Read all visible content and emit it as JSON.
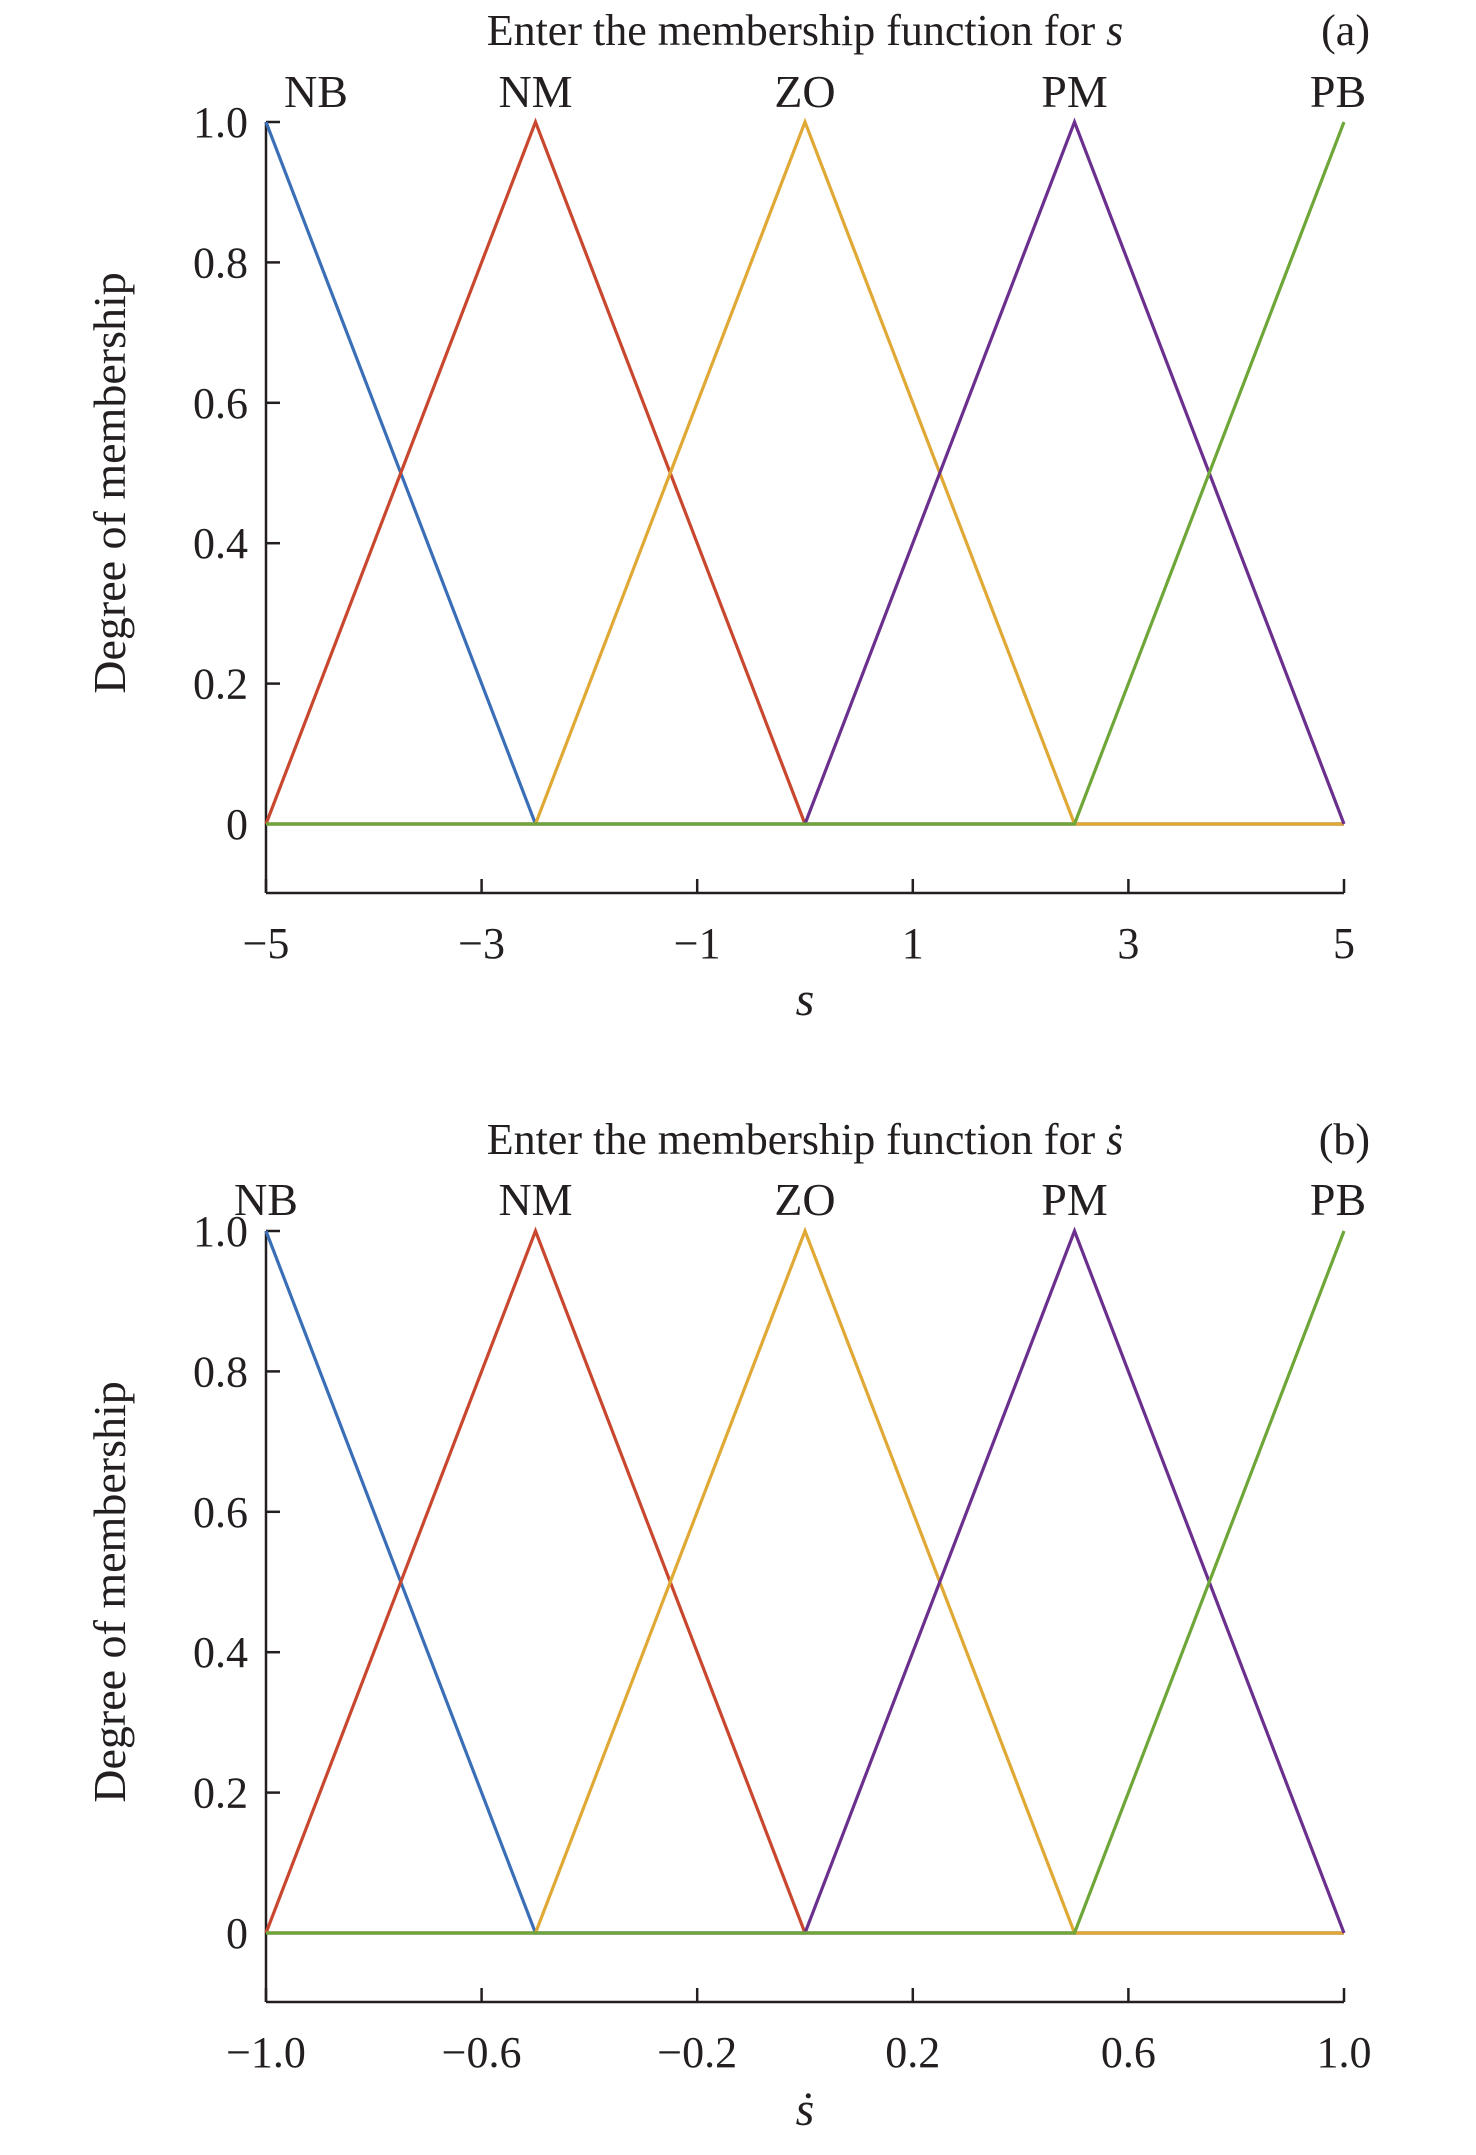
{
  "colors": {
    "NB": "#3a6fb7",
    "NM": "#c8472e",
    "ZO": "#e0a936",
    "PM": "#6b2f8e",
    "PB": "#6ea638",
    "axis": "#231f20"
  },
  "chart_data": [
    {
      "type": "line",
      "title_prefix": "Enter the membership function for ",
      "title_symbol": "s",
      "panel": "(a)",
      "xlabel": "s",
      "ylabel": "Degree of membership",
      "xlim": [
        -5,
        5
      ],
      "ylim": [
        -0.1,
        1.0
      ],
      "xticks": [
        -5,
        -3,
        -1,
        1,
        3,
        5
      ],
      "xtick_labels": [
        "−5",
        "−3",
        "−1",
        "1",
        "3",
        "5"
      ],
      "yticks": [
        0,
        0.2,
        0.4,
        0.6,
        0.8,
        1.0
      ],
      "ytick_labels": [
        "0",
        "0.2",
        "0.4",
        "0.6",
        "0.8",
        "1.0"
      ],
      "grid": false,
      "series": [
        {
          "name": "NB",
          "x": [
            -5,
            -2.5,
            5
          ],
          "y": [
            1,
            0,
            0
          ]
        },
        {
          "name": "NM",
          "x": [
            -5,
            -2.5,
            0,
            5
          ],
          "y": [
            0,
            1,
            0,
            0
          ]
        },
        {
          "name": "ZO",
          "x": [
            -5,
            -2.5,
            0,
            2.5,
            5
          ],
          "y": [
            0,
            0,
            1,
            0,
            0
          ]
        },
        {
          "name": "PM",
          "x": [
            -5,
            0,
            2.5,
            5
          ],
          "y": [
            0,
            0,
            1,
            0
          ]
        },
        {
          "name": "PB",
          "x": [
            -5,
            2.5,
            5
          ],
          "y": [
            0,
            0,
            1
          ]
        }
      ]
    },
    {
      "type": "line",
      "title_prefix": "Enter the membership function for ",
      "title_symbol": "ṡ",
      "panel": "(b)",
      "xlabel": "ṡ",
      "ylabel": "Degree of membership",
      "xlim": [
        -1.0,
        1.0
      ],
      "ylim": [
        -0.1,
        1.0
      ],
      "xticks": [
        -1.0,
        -0.6,
        -0.2,
        0.2,
        0.6,
        1.0
      ],
      "xtick_labels": [
        "−1.0",
        "−0.6",
        "−0.2",
        "0.2",
        "0.6",
        "1.0"
      ],
      "yticks": [
        0,
        0.2,
        0.4,
        0.6,
        0.8,
        1.0
      ],
      "ytick_labels": [
        "0",
        "0.2",
        "0.4",
        "0.6",
        "0.8",
        "1.0"
      ],
      "grid": false,
      "series": [
        {
          "name": "NB",
          "x": [
            -1.0,
            -0.5,
            1.0
          ],
          "y": [
            1,
            0,
            0
          ]
        },
        {
          "name": "NM",
          "x": [
            -1.0,
            -0.5,
            0,
            1.0
          ],
          "y": [
            0,
            1,
            0,
            0
          ]
        },
        {
          "name": "ZO",
          "x": [
            -1.0,
            -0.5,
            0,
            0.5,
            1.0
          ],
          "y": [
            0,
            0,
            1,
            0,
            0
          ]
        },
        {
          "name": "PM",
          "x": [
            -1.0,
            0,
            0.5,
            1.0
          ],
          "y": [
            0,
            0,
            1,
            0
          ]
        },
        {
          "name": "PB",
          "x": [
            -1.0,
            0.5,
            1.0
          ],
          "y": [
            0,
            0,
            1
          ]
        }
      ]
    }
  ]
}
